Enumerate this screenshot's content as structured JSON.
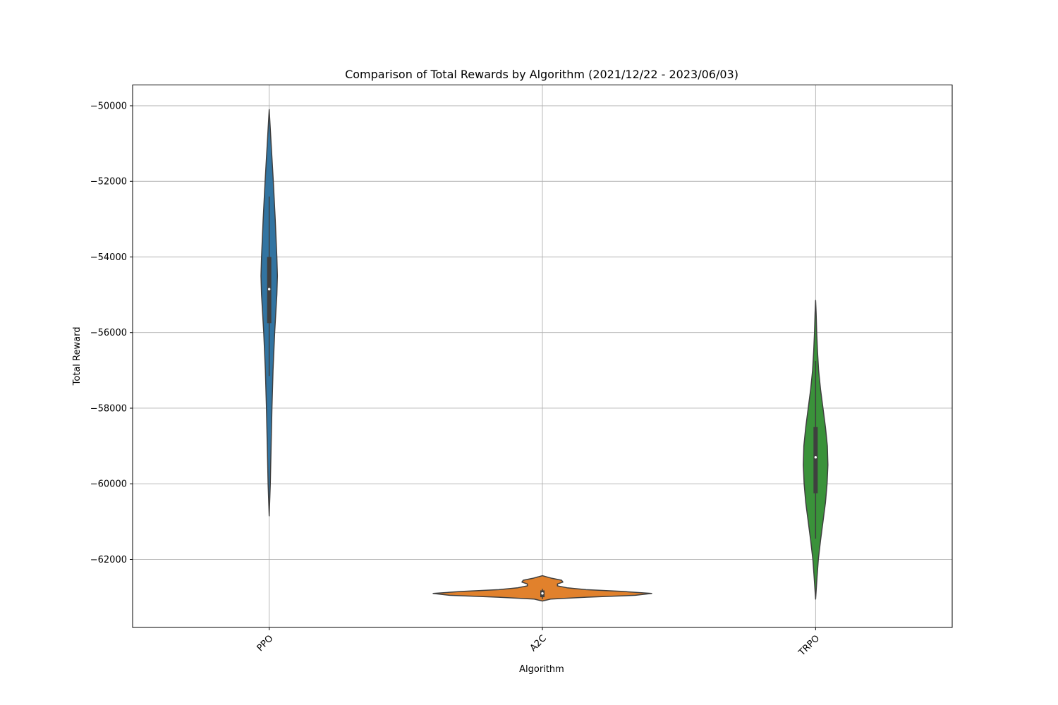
{
  "chart_data": {
    "type": "violin",
    "title": "Comparison of Total Rewards by Algorithm (2021/12/22 - 2023/06/03)",
    "xlabel": "Algorithm",
    "ylabel": "Total Reward",
    "categories": [
      "PPO",
      "A2C",
      "TRPO"
    ],
    "ylim": [
      -63800,
      -49450
    ],
    "yticks": [
      -50000,
      -52000,
      -54000,
      -56000,
      -58000,
      -60000,
      -62000
    ],
    "ytick_labels": [
      "−50000",
      "−52000",
      "−54000",
      "−56000",
      "−58000",
      "−60000",
      "−62000"
    ],
    "grid": true,
    "series": [
      {
        "category": "PPO",
        "color": "#3274a1",
        "min": -60850,
        "q1": -55750,
        "median": -54850,
        "q3": -54000,
        "max": -50100,
        "whisker_low": -57150,
        "whisker_high": -52400,
        "density": [
          [
            -60850,
            0.0
          ],
          [
            -60000,
            0.04
          ],
          [
            -59000,
            0.07
          ],
          [
            -58000,
            0.1
          ],
          [
            -57000,
            0.14
          ],
          [
            -56000,
            0.2
          ],
          [
            -55000,
            0.28
          ],
          [
            -54500,
            0.3
          ],
          [
            -54000,
            0.28
          ],
          [
            -53000,
            0.22
          ],
          [
            -52000,
            0.15
          ],
          [
            -51000,
            0.07
          ],
          [
            -50100,
            0.0
          ]
        ]
      },
      {
        "category": "A2C",
        "color": "#e1812c",
        "min": -63100,
        "q1": -63000,
        "median": -62900,
        "q3": -62820,
        "max": -62430,
        "whisker_low": -63050,
        "whisker_high": -62780,
        "density": [
          [
            -63100,
            0.0
          ],
          [
            -63050,
            0.3
          ],
          [
            -63000,
            1.6
          ],
          [
            -62950,
            3.4
          ],
          [
            -62900,
            4.0
          ],
          [
            -62850,
            3.0
          ],
          [
            -62800,
            1.6
          ],
          [
            -62750,
            0.9
          ],
          [
            -62700,
            0.55
          ],
          [
            -62650,
            0.55
          ],
          [
            -62600,
            0.75
          ],
          [
            -62550,
            0.7
          ],
          [
            -62500,
            0.35
          ],
          [
            -62430,
            0.0
          ]
        ]
      },
      {
        "category": "TRPO",
        "color": "#3a923a",
        "min": -63050,
        "q1": -60250,
        "median": -59300,
        "q3": -58500,
        "max": -55150,
        "whisker_low": -61450,
        "whisker_high": -56750,
        "density": [
          [
            -63050,
            0.0
          ],
          [
            -62500,
            0.05
          ],
          [
            -62000,
            0.1
          ],
          [
            -61500,
            0.18
          ],
          [
            -61000,
            0.27
          ],
          [
            -60500,
            0.36
          ],
          [
            -60000,
            0.42
          ],
          [
            -59500,
            0.45
          ],
          [
            -59000,
            0.43
          ],
          [
            -58500,
            0.36
          ],
          [
            -58000,
            0.27
          ],
          [
            -57500,
            0.18
          ],
          [
            -57000,
            0.11
          ],
          [
            -56500,
            0.07
          ],
          [
            -56000,
            0.04
          ],
          [
            -55500,
            0.02
          ],
          [
            -55150,
            0.0
          ]
        ]
      }
    ]
  }
}
